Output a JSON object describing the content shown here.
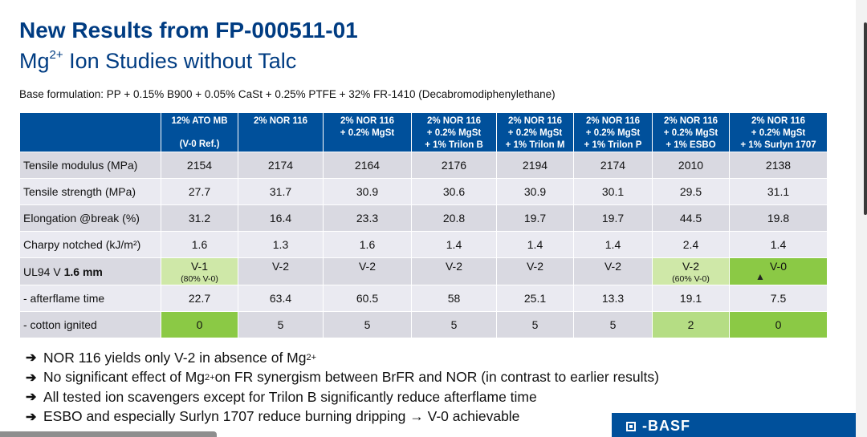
{
  "title": "New Results from FP-000511-01",
  "subtitle": {
    "prefix": "Mg",
    "sup": "2+",
    "rest": " Ion Studies without Talc"
  },
  "base_formulation": "Base formulation: PP + 0.15% B900 + 0.05% CaSt + 0.25% PTFE + 32% FR-1410 (Decabromodiphenylethane)",
  "table": {
    "headers": [
      {
        "line1": "12% ATO MB",
        "line2": "",
        "line3": "(V-0 Ref.)"
      },
      {
        "line1": "2% NOR 116",
        "line2": "",
        "line3": ""
      },
      {
        "line1": "2% NOR 116",
        "line2": "+ 0.2% MgSt",
        "line3": ""
      },
      {
        "line1": "2% NOR 116",
        "line2": "+ 0.2% MgSt",
        "line3": "+ 1% Trilon B"
      },
      {
        "line1": "2% NOR 116",
        "line2": "+ 0.2% MgSt",
        "line3": "+ 1% Trilon M"
      },
      {
        "line1": "2% NOR 116",
        "line2": "+ 0.2% MgSt",
        "line3": "+ 1% Trilon P"
      },
      {
        "line1": "2% NOR 116",
        "line2": "+ 0.2% MgSt",
        "line3": "+ 1% ESBO"
      },
      {
        "line1": "2% NOR 116",
        "line2": "+ 0.2% MgSt",
        "line3": "+ 1% Surlyn 1707"
      }
    ],
    "rows": [
      {
        "label": "Tensile modulus (MPa)",
        "values": [
          "2154",
          "2174",
          "2164",
          "2176",
          "2194",
          "2174",
          "2010",
          "2138"
        ]
      },
      {
        "label": "Tensile strength (MPa)",
        "values": [
          "27.7",
          "31.7",
          "30.9",
          "30.6",
          "30.9",
          "30.1",
          "29.5",
          "31.1"
        ]
      },
      {
        "label": "Elongation @break (%)",
        "values": [
          "31.2",
          "16.4",
          "23.3",
          "20.8",
          "19.7",
          "19.7",
          "44.5",
          "19.8"
        ]
      },
      {
        "label": "Charpy notched (kJ/m²)",
        "values": [
          "1.6",
          "1.3",
          "1.6",
          "1.4",
          "1.4",
          "1.4",
          "2.4",
          "1.4"
        ]
      },
      {
        "label_prefix": "UL94 V ",
        "label_bold": "1.6 mm",
        "values": [
          "V-1",
          "V-2",
          "V-2",
          "V-2",
          "V-2",
          "V-2",
          "V-2",
          "V-0"
        ],
        "notes": [
          "(80% V-0)",
          "",
          "",
          "",
          "",
          "",
          "(60% V-0)",
          ""
        ]
      },
      {
        "label": " - afterflame time",
        "values": [
          "22.7",
          "63.4",
          "60.5",
          "58",
          "25.1",
          "13.3",
          "19.1",
          "7.5"
        ]
      },
      {
        "label": " - cotton ignited",
        "values": [
          "0",
          "5",
          "5",
          "5",
          "5",
          "5",
          "2",
          "0"
        ]
      }
    ],
    "highlight_colors": {
      "light": "#cfe8a8",
      "mid": "#b5dd84",
      "strong": "#8bc945"
    },
    "header_color": "#00509b"
  },
  "bullets": [
    {
      "pre": "NOR 116 yields only V-2 in absence of Mg",
      "sup": "2+",
      "post": ""
    },
    {
      "pre": "No significant effect of Mg",
      "sup": "2+",
      "post": " on FR synergism between BrFR and NOR (in contrast to earlier results)"
    },
    {
      "pre": "All tested ion scavengers except for Trilon B significantly reduce afterflame time",
      "sup": "",
      "post": ""
    },
    {
      "pre": "ESBO and especially Surlyn 1707 reduce burning dripping → V-0 achievable",
      "sup": "",
      "post": ""
    }
  ],
  "bullet_arrow": "➔",
  "logo_text": "BASF",
  "brand_color": "#00509b",
  "title_color": "#003c82"
}
